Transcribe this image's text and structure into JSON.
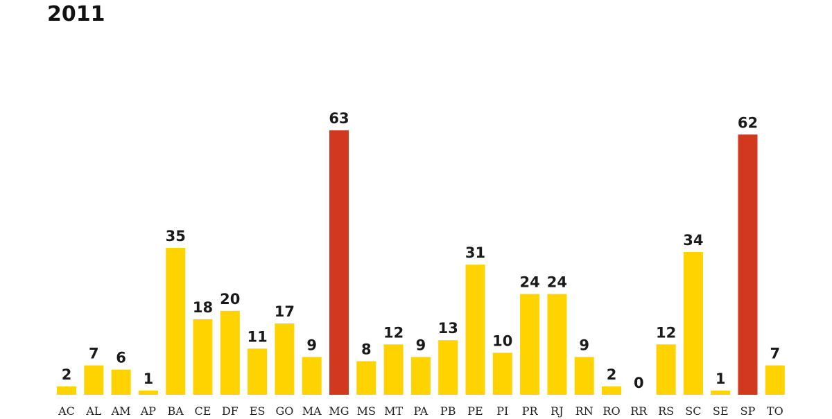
{
  "chart_data": {
    "type": "bar",
    "title": "2011",
    "categories": [
      "AC",
      "AL",
      "AM",
      "AP",
      "BA",
      "CE",
      "DF",
      "ES",
      "GO",
      "MA",
      "MG",
      "MS",
      "MT",
      "PA",
      "PB",
      "PE",
      "PI",
      "PR",
      "RJ",
      "RN",
      "RO",
      "RR",
      "RS",
      "SC",
      "SE",
      "SP",
      "TO"
    ],
    "values": [
      2,
      7,
      6,
      1,
      35,
      18,
      20,
      11,
      17,
      9,
      63,
      8,
      12,
      9,
      13,
      31,
      10,
      24,
      24,
      9,
      2,
      0,
      12,
      34,
      1,
      62,
      7
    ],
    "colors": [
      "#ffd300",
      "#ffd300",
      "#ffd300",
      "#ffd300",
      "#ffd300",
      "#ffd300",
      "#ffd300",
      "#ffd300",
      "#ffd300",
      "#ffd300",
      "#d2381e",
      "#ffd300",
      "#ffd300",
      "#ffd300",
      "#ffd300",
      "#ffd300",
      "#ffd300",
      "#ffd300",
      "#ffd300",
      "#ffd300",
      "#ffd300",
      "#ffd300",
      "#ffd300",
      "#ffd300",
      "#ffd300",
      "#d2381e",
      "#ffd300"
    ]
  }
}
